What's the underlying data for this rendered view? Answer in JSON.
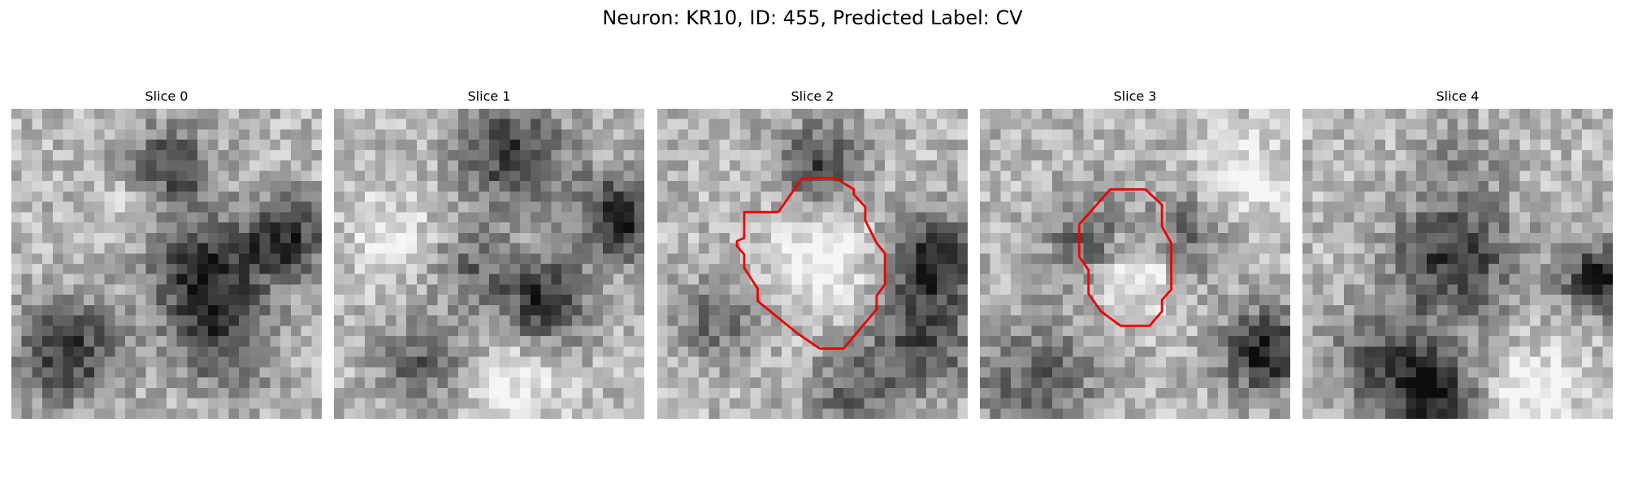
{
  "figure": {
    "title": "Neuron: KR10, ID: 455, Predicted Label: CV",
    "contour_color": "#ee0000"
  },
  "panels": [
    {
      "title": "Slice 0",
      "has_contour": false
    },
    {
      "title": "Slice 1",
      "has_contour": false
    },
    {
      "title": "Slice 2",
      "has_contour": true
    },
    {
      "title": "Slice 3",
      "has_contour": true
    },
    {
      "title": "Slice 4",
      "has_contour": false
    }
  ]
}
